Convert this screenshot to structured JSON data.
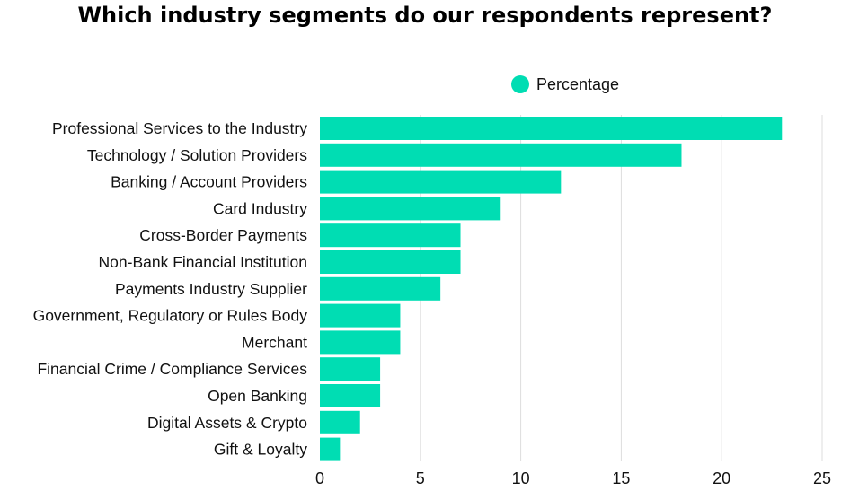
{
  "colors": {
    "series": "#00DDB3",
    "grid": "#DDDDDD"
  },
  "chart_data": {
    "type": "bar",
    "orientation": "horizontal",
    "title": "Which industry segments do our respondents represent?",
    "categories": [
      "Professional Services to the Industry",
      "Technology / Solution Providers",
      "Banking / Account Providers",
      "Card Industry",
      "Cross-Border Payments",
      "Non-Bank Financial Institution",
      "Payments Industry Supplier",
      "Government, Regulatory or Rules Body",
      "Merchant",
      "Financial Crime / Compliance Services",
      "Open Banking",
      "Digital Assets & Crypto",
      "Gift & Loyalty"
    ],
    "series": [
      {
        "name": "Percentage",
        "values": [
          23,
          18,
          12,
          9,
          7,
          7,
          6,
          4,
          4,
          3,
          3,
          2,
          1
        ]
      }
    ],
    "xlim": [
      0,
      25
    ],
    "xticks": [
      0,
      5,
      10,
      15,
      20,
      25
    ],
    "grid": true,
    "legend": "top-center"
  }
}
